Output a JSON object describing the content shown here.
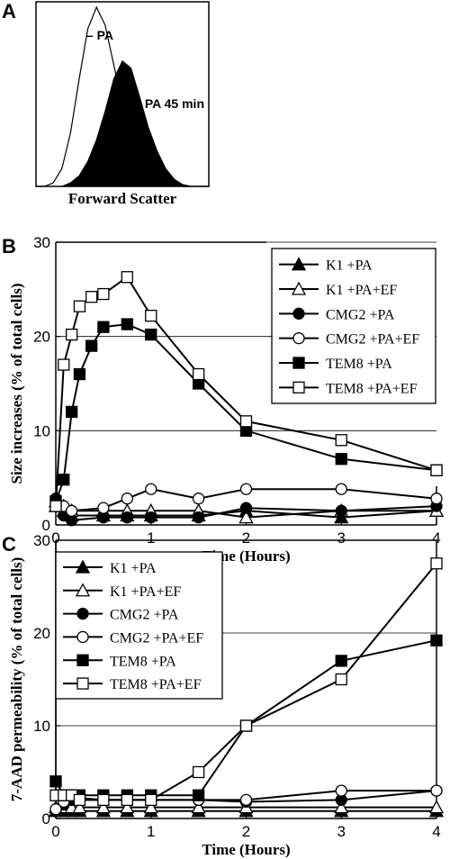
{
  "chart_data": [
    {
      "panel": "A",
      "type": "area",
      "xlabel": "Forward Scatter",
      "ylabel": "",
      "annotations": [
        "– PA",
        "+ PA 45 min"
      ],
      "series": [
        {
          "name": "– PA",
          "fill": "none",
          "x": [
            0,
            0.05,
            0.1,
            0.15,
            0.2,
            0.25,
            0.3,
            0.35,
            0.4,
            0.45,
            0.5,
            0.55,
            0.6,
            0.65,
            0.7,
            0.75,
            0.8,
            0.85,
            0.9,
            0.95,
            1
          ],
          "values": [
            0,
            0,
            0.02,
            0.1,
            0.3,
            0.6,
            0.88,
            1.0,
            0.9,
            0.68,
            0.45,
            0.3,
            0.18,
            0.1,
            0.05,
            0.02,
            0.01,
            0,
            0,
            0,
            0
          ]
        },
        {
          "name": "+ PA 45 min",
          "fill": "solid",
          "x": [
            0,
            0.05,
            0.1,
            0.15,
            0.2,
            0.25,
            0.3,
            0.35,
            0.4,
            0.45,
            0.5,
            0.55,
            0.6,
            0.65,
            0.7,
            0.75,
            0.8,
            0.85,
            0.9,
            0.95,
            1
          ],
          "values": [
            0,
            0,
            0,
            0,
            0.02,
            0.06,
            0.14,
            0.26,
            0.42,
            0.6,
            0.7,
            0.66,
            0.5,
            0.33,
            0.2,
            0.1,
            0.04,
            0.01,
            0,
            0,
            0
          ]
        }
      ]
    },
    {
      "panel": "B",
      "type": "line",
      "xlabel": "Time (Hours)",
      "ylabel": "Size increases (% of total cells)",
      "xlim": [
        0,
        4
      ],
      "ylim": [
        0,
        30
      ],
      "xticks": [
        0,
        1,
        2,
        3,
        4
      ],
      "yticks": [
        0,
        10,
        20,
        30
      ],
      "grid": "horizontal",
      "legend": "top-right",
      "series": [
        {
          "name": "K1 +PA",
          "marker": "triangle-filled",
          "x": [
            0,
            0.083,
            0.167,
            0.5,
            0.75,
            1,
            1.5,
            2,
            3,
            4
          ],
          "y": [
            2,
            1.5,
            1,
            1,
            1,
            1,
            1,
            1.5,
            0.8,
            1.5
          ]
        },
        {
          "name": "K1 +PA+EF",
          "marker": "triangle-open",
          "x": [
            0,
            0.083,
            0.167,
            0.5,
            0.75,
            1,
            1.5,
            2,
            3,
            4
          ],
          "y": [
            2.5,
            2,
            1.5,
            1.5,
            1.5,
            1.5,
            1.5,
            0.8,
            1.5,
            1.5
          ]
        },
        {
          "name": "CMG2 +PA",
          "marker": "circle-filled",
          "x": [
            0,
            0.083,
            0.167,
            0.5,
            0.75,
            1,
            1.5,
            2,
            3,
            4
          ],
          "y": [
            2.8,
            1,
            0.5,
            0.8,
            0.8,
            0.8,
            0.8,
            1.8,
            1.5,
            2
          ]
        },
        {
          "name": "CMG2 +PA+EF",
          "marker": "circle-open",
          "x": [
            0,
            0.083,
            0.167,
            0.5,
            0.75,
            1,
            1.5,
            2,
            3,
            4
          ],
          "y": [
            2,
            2,
            1.5,
            1.8,
            2.8,
            3.8,
            2.8,
            3.8,
            3.8,
            2.8
          ]
        },
        {
          "name": "TEM8 +PA",
          "marker": "square-filled",
          "x": [
            0,
            0.083,
            0.167,
            0.25,
            0.375,
            0.5,
            0.75,
            1,
            1.5,
            2,
            3,
            4
          ],
          "y": [
            2.5,
            4.8,
            12,
            16,
            19,
            21,
            21.3,
            20.2,
            15,
            10,
            7,
            5.8
          ]
        },
        {
          "name": "TEM8 +PA+EF",
          "marker": "square-open",
          "x": [
            0,
            0.083,
            0.167,
            0.25,
            0.375,
            0.5,
            0.75,
            1,
            1.5,
            2,
            3,
            4
          ],
          "y": [
            2,
            17,
            20.2,
            23.2,
            24.2,
            24.5,
            26.3,
            22.2,
            16,
            11,
            9,
            5.8
          ]
        }
      ]
    },
    {
      "panel": "C",
      "type": "line",
      "xlabel": "Time (Hours)",
      "ylabel": "7-AAD permeability (% of total cells)",
      "xlim": [
        0,
        4
      ],
      "ylim": [
        0,
        30
      ],
      "xticks": [
        0,
        1,
        2,
        3,
        4
      ],
      "yticks": [
        0,
        10,
        20,
        30
      ],
      "grid": "horizontal",
      "legend": "top-left",
      "series": [
        {
          "name": "K1 +PA",
          "marker": "triangle-filled",
          "x": [
            0,
            0.083,
            0.167,
            0.25,
            0.5,
            0.75,
            1,
            1.5,
            2,
            3,
            4
          ],
          "y": [
            0.8,
            0.8,
            0.8,
            0.8,
            0.8,
            0.8,
            0.8,
            0.8,
            0.8,
            0.8,
            0.8
          ]
        },
        {
          "name": "K1 +PA+EF",
          "marker": "triangle-open",
          "x": [
            0,
            0.083,
            0.167,
            0.25,
            0.5,
            0.75,
            1,
            1.5,
            2,
            3,
            4
          ],
          "y": [
            1.2,
            1.2,
            1.2,
            1.2,
            1.2,
            1.2,
            1.2,
            1.2,
            1.2,
            1.2,
            1.2
          ]
        },
        {
          "name": "CMG2 +PA",
          "marker": "circle-filled",
          "x": [
            0,
            0.083,
            0.167,
            0.25,
            0.5,
            0.75,
            1,
            1.5,
            2,
            3,
            4
          ],
          "y": [
            0.8,
            1.5,
            2,
            2,
            2,
            2,
            2,
            2,
            1.8,
            2,
            3
          ]
        },
        {
          "name": "CMG2 +PA+EF",
          "marker": "circle-open",
          "x": [
            0,
            0.083,
            0.167,
            0.25,
            0.5,
            0.75,
            1,
            1.5,
            2,
            3,
            4
          ],
          "y": [
            1,
            1.8,
            2.5,
            2.2,
            2,
            2,
            2,
            2,
            2,
            3,
            3
          ]
        },
        {
          "name": "TEM8 +PA",
          "marker": "square-filled",
          "x": [
            0,
            0.083,
            0.167,
            0.25,
            0.5,
            0.75,
            1,
            1.5,
            2,
            3,
            4
          ],
          "y": [
            4,
            2.5,
            2.5,
            2.5,
            2.5,
            2.5,
            2.5,
            2.5,
            10,
            17,
            19.2
          ]
        },
        {
          "name": "TEM8 +PA+EF",
          "marker": "square-open",
          "x": [
            0,
            0.083,
            0.167,
            0.25,
            0.5,
            0.75,
            1,
            1.5,
            2,
            3,
            4
          ],
          "y": [
            2.5,
            2.5,
            2.5,
            2,
            2,
            2,
            2,
            5,
            10,
            15,
            27.5
          ]
        }
      ]
    }
  ]
}
